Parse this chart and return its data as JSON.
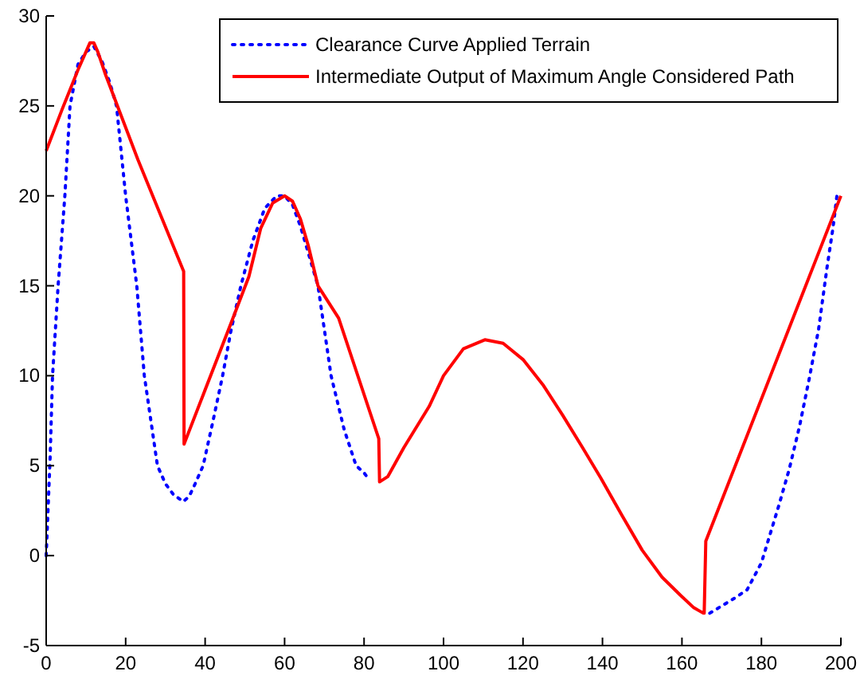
{
  "chart_data": {
    "type": "line",
    "xlim": [
      0,
      200
    ],
    "ylim": [
      -5,
      30
    ],
    "xticks": [
      0,
      20,
      40,
      60,
      80,
      100,
      120,
      140,
      160,
      180,
      200
    ],
    "yticks": [
      -5,
      0,
      5,
      10,
      15,
      20,
      25,
      30
    ],
    "grid": false,
    "legend": "top right",
    "series": [
      {
        "name": "Clearance Curve Applied Terrain",
        "color": "#0000ff",
        "line_style": "dotted",
        "x": [
          0,
          1,
          1.6,
          3,
          4.7,
          6,
          8,
          10,
          12,
          14,
          16,
          17.7,
          20,
          22.8,
          24.7,
          28,
          30,
          32,
          34.5,
          36,
          37.5,
          39.5,
          42,
          44.4,
          46.5,
          49,
          52,
          55,
          58,
          60,
          62,
          64,
          66,
          68.4,
          71.7,
          75,
          78,
          80,
          81
        ],
        "values": [
          0,
          5.5,
          10,
          15,
          20,
          25,
          27.3,
          28,
          28.3,
          27.5,
          26.3,
          25,
          20,
          15,
          10,
          5,
          4,
          3.4,
          3,
          3.3,
          4,
          5,
          7.5,
          10,
          12.5,
          15,
          17.5,
          19.3,
          20,
          20,
          19.5,
          18.3,
          16.8,
          15,
          10,
          7,
          5,
          4.6,
          4.3
        ]
      },
      {
        "x": [
          167,
          170,
          173,
          176.4,
          180,
          184.4,
          187,
          189.6,
          192,
          194.4,
          196.5,
          198,
          199
        ],
        "values": [
          -3.2,
          -2.8,
          -2.4,
          -1.9,
          -0.4,
          2.8,
          4.8,
          7.2,
          9.8,
          12.6,
          16,
          18.2,
          20
        ],
        "color": "#0000ff",
        "line_style": "dotted"
      },
      {
        "name": "Intermediate Output of Maximum Angle Considered Path",
        "color": "#ff0000",
        "line_style": "solid",
        "x": [
          0,
          4,
          8,
          11,
          12,
          13,
          15,
          23.1,
          34.6,
          34.7,
          47,
          51,
          54,
          57,
          60,
          62,
          64,
          66,
          68.4,
          73.6,
          83.7,
          83.9,
          86,
          90,
          96.4,
          100,
          105,
          110.4,
          115,
          120,
          125,
          130,
          135,
          139.6,
          145,
          150,
          155,
          159.6,
          163,
          165.4,
          165.6,
          166,
          200
        ],
        "values": [
          22.5,
          24.8,
          27,
          28.5,
          28.5,
          28,
          26.7,
          22,
          15.8,
          6.2,
          13.2,
          15.5,
          18.2,
          19.6,
          20,
          19.7,
          18.7,
          17.2,
          15,
          13.2,
          6.5,
          4.1,
          4.4,
          6,
          8.3,
          10,
          11.5,
          12,
          11.8,
          10.9,
          9.5,
          7.8,
          6,
          4.3,
          2.2,
          0.3,
          -1.2,
          -2.2,
          -2.9,
          -3.2,
          -3.2,
          0.8,
          20
        ]
      }
    ]
  }
}
